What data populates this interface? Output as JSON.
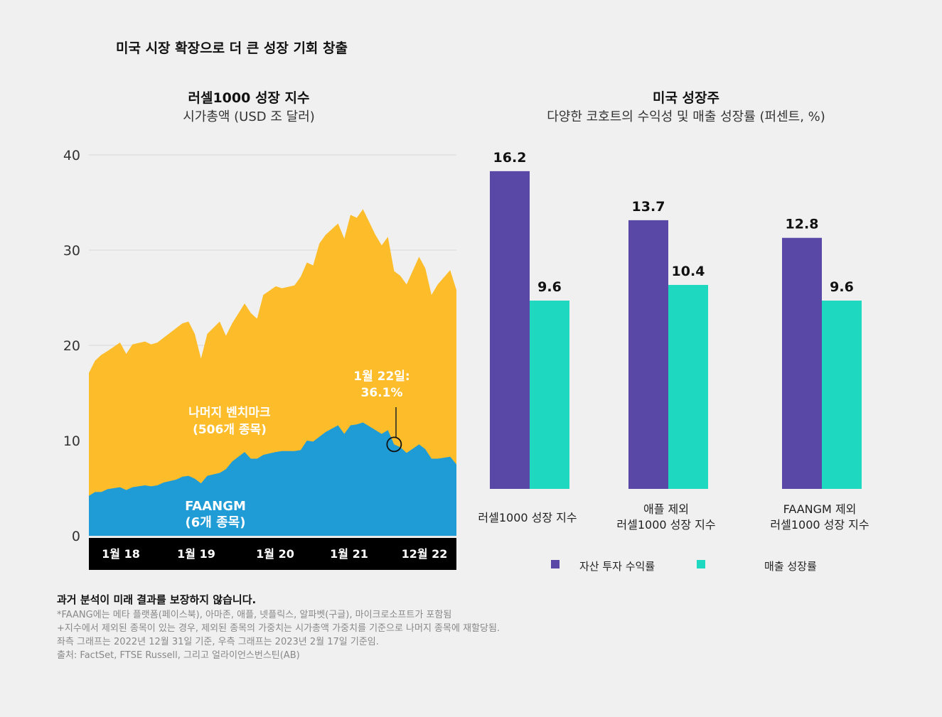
{
  "title": "미국 시장 확장으로 더 큰 성장 기회 창출",
  "chart_data": [
    {
      "type": "area",
      "stacked": true,
      "title": "러셀1000 성장 지수",
      "subtitle": "시가총액 (USD 조 달러)",
      "ylim": [
        0,
        40
      ],
      "yticks": [
        0,
        10,
        20,
        30,
        40
      ],
      "grid": true,
      "xtick_labels": [
        "1월 18",
        "1월 19",
        "1월 20",
        "1월 21",
        "12월 22"
      ],
      "x": [
        "2018-01",
        "2018-02",
        "2018-03",
        "2018-04",
        "2018-06",
        "2018-07",
        "2018-08",
        "2018-10",
        "2018-11",
        "2018-12",
        "2019-01",
        "2019-03",
        "2019-04",
        "2019-05",
        "2019-06",
        "2019-07",
        "2019-08",
        "2019-10",
        "2019-11",
        "2019-12",
        "2020-02",
        "2020-03",
        "2020-04",
        "2020-05",
        "2020-07",
        "2020-08",
        "2020-10",
        "2020-11",
        "2020-12",
        "2021-01",
        "2021-02",
        "2021-03",
        "2021-05",
        "2021-06",
        "2021-07",
        "2021-08",
        "2021-09",
        "2021-11",
        "2021-12",
        "2022-01",
        "2022-02",
        "2022-03",
        "2022-04",
        "2022-06",
        "2022-07",
        "2022-08",
        "2022-09",
        "2022-11",
        "2022-12"
      ],
      "series": [
        {
          "name": "FAANGM",
          "label": "FAANGM",
          "sublabel": "(6개 종목)",
          "color": "#1f9bd6",
          "values": [
            4.2,
            4.6,
            4.6,
            4.9,
            5.1,
            4.8,
            5.1,
            5.3,
            5.2,
            5.3,
            5.6,
            5.9,
            6.2,
            6.3,
            6.0,
            5.5,
            6.3,
            6.6,
            7.0,
            7.8,
            8.8,
            8.1,
            8.1,
            8.5,
            8.8,
            8.9,
            8.9,
            9.0,
            10.0,
            9.9,
            10.4,
            10.9,
            11.6,
            10.7,
            11.6,
            11.7,
            11.9,
            11.1,
            10.7,
            11.1,
            9.6,
            9.3,
            8.7,
            9.6,
            9.1,
            8.1,
            8.1,
            8.3,
            7.5
          ]
        },
        {
          "name": "나머지 벤치마크",
          "label": "나머지 벤치마크",
          "sublabel": "(506개 종목)",
          "color": "#fdbd2a",
          "total_values": [
            17.1,
            18.4,
            19.0,
            19.4,
            20.3,
            19.1,
            20.1,
            20.4,
            20.1,
            20.3,
            20.8,
            21.8,
            22.3,
            22.5,
            21.2,
            18.6,
            21.2,
            22.5,
            21.0,
            22.3,
            24.4,
            23.4,
            22.8,
            25.3,
            26.2,
            26.0,
            26.3,
            27.2,
            28.7,
            28.4,
            30.7,
            31.6,
            32.8,
            31.2,
            33.7,
            33.4,
            34.3,
            31.6,
            30.5,
            31.4,
            27.8,
            27.3,
            26.4,
            29.3,
            28.1,
            25.3,
            26.4,
            27.9,
            25.8
          ]
        }
      ],
      "annotation": {
        "text_line1": "1월 22일:",
        "text_line2": "36.1%",
        "x": "2022-02",
        "y": 9.6
      }
    },
    {
      "type": "bar",
      "title": "미국 성장주",
      "subtitle": "다양한 코호트의 수익성 및 매출 성장률 (퍼센트, %)",
      "categories": [
        {
          "line1": "러셀1000 성장 지수",
          "line2": ""
        },
        {
          "line1": "애플 제외",
          "line2": "러셀1000 성장 지수"
        },
        {
          "line1": "FAANGM 제외",
          "line2": "러셀1000 성장 지수"
        }
      ],
      "series": [
        {
          "name": "자산 투자 수익률",
          "color": "#5a48a6",
          "values": [
            16.2,
            13.7,
            12.8
          ]
        },
        {
          "name": "매출 성장률",
          "color": "#1ed8c0",
          "values": [
            9.6,
            10.4,
            9.6
          ]
        }
      ],
      "legend": "bottom"
    }
  ],
  "footer": {
    "disclaimer": "과거 분석이 미래 결과를 보장하지 않습니다.",
    "notes": [
      "*FAANG에는 메타 플랫폼(페이스북), 아마존, 애플, 넷플릭스, 알파벳(구글), 마이크로소프트가 포함됨",
      "+지수에서 제외된 종목이 있는 경우, 제외된 종목의 가중치는 시가총액 가중치를 기준으로 나머지 종목에 재할당됨.",
      "좌측 그래프는 2022년 12월 31일 기준, 우측 그래프는 2023년 2월 17일 기준임.",
      "출처: FactSet, FTSE Russell, 그리고 얼라이언스번스틴(AB)"
    ]
  }
}
